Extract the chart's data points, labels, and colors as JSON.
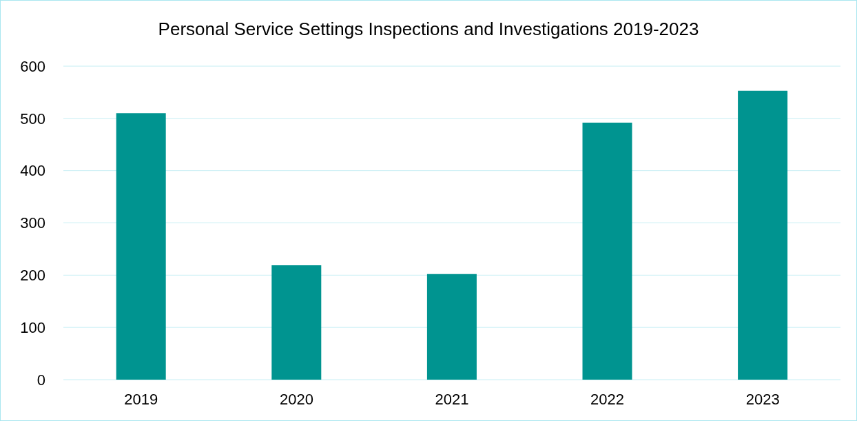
{
  "chart_data": {
    "type": "bar",
    "title": "Personal Service Settings Inspections and Investigations 2019-2023",
    "categories": [
      "2019",
      "2020",
      "2021",
      "2022",
      "2023"
    ],
    "values": [
      510,
      219,
      202,
      492,
      553
    ],
    "color": "#009490",
    "ylim": [
      0,
      600
    ],
    "yticks": [
      0,
      100,
      200,
      300,
      400,
      500,
      600
    ],
    "grid": "y"
  }
}
